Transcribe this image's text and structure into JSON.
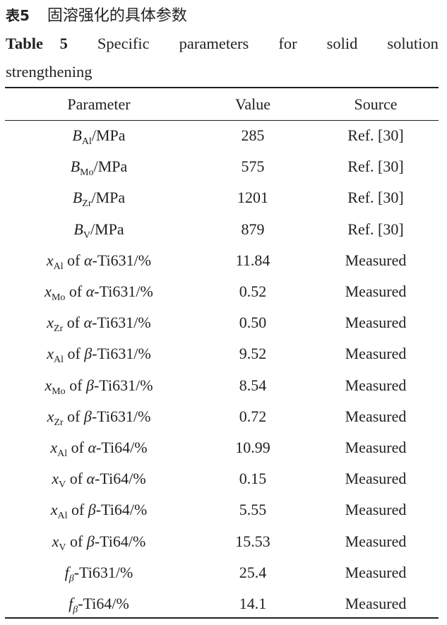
{
  "caption": {
    "cn_label": "表5",
    "cn_text": "固溶强化的具体参数",
    "en_label": "Table 5",
    "en_words": [
      "Specific",
      "parameters",
      "for",
      "solid",
      "solution"
    ],
    "en_line2": "strengthening"
  },
  "table": {
    "headers": [
      "Parameter",
      "Value",
      "Source"
    ],
    "rows": [
      {
        "sym": "B",
        "sub": "Al",
        "pre": "",
        "greek": "",
        "post": "/MPa",
        "value": "285",
        "source": "Ref. [30]"
      },
      {
        "sym": "B",
        "sub": "Mo",
        "pre": "",
        "greek": "",
        "post": "/MPa",
        "value": "575",
        "source": "Ref. [30]"
      },
      {
        "sym": "B",
        "sub": "Zr",
        "pre": "",
        "greek": "",
        "post": "/MPa",
        "value": "1201",
        "source": "Ref. [30]"
      },
      {
        "sym": "B",
        "sub": "V",
        "pre": "",
        "greek": "",
        "post": "/MPa",
        "value": "879",
        "source": "Ref. [30]"
      },
      {
        "sym": "x",
        "sub": "Al",
        "pre": " of ",
        "greek": "α",
        "post": "-Ti631/%",
        "value": "11.84",
        "source": "Measured"
      },
      {
        "sym": "x",
        "sub": "Mo",
        "pre": " of ",
        "greek": "α",
        "post": "-Ti631/%",
        "value": "0.52",
        "source": "Measured"
      },
      {
        "sym": "x",
        "sub": "Zr",
        "pre": " of ",
        "greek": "α",
        "post": "-Ti631/%",
        "value": "0.50",
        "source": "Measured"
      },
      {
        "sym": "x",
        "sub": "Al",
        "pre": " of ",
        "greek": "β",
        "post": "-Ti631/%",
        "value": "9.52",
        "source": "Measured"
      },
      {
        "sym": "x",
        "sub": "Mo",
        "pre": " of ",
        "greek": "β",
        "post": "-Ti631/%",
        "value": "8.54",
        "source": "Measured"
      },
      {
        "sym": "x",
        "sub": "Zr",
        "pre": " of ",
        "greek": "β",
        "post": "-Ti631/%",
        "value": "0.72",
        "source": "Measured"
      },
      {
        "sym": "x",
        "sub": "Al",
        "pre": " of ",
        "greek": "α",
        "post": "-Ti64/%",
        "value": "10.99",
        "source": "Measured"
      },
      {
        "sym": "x",
        "sub": "V",
        "pre": " of ",
        "greek": "α",
        "post": "-Ti64/%",
        "value": "0.15",
        "source": "Measured"
      },
      {
        "sym": "x",
        "sub": "Al",
        "pre": " of ",
        "greek": "β",
        "post": "-Ti64/%",
        "value": "5.55",
        "source": "Measured"
      },
      {
        "sym": "x",
        "sub": "V",
        "pre": " of ",
        "greek": "β",
        "post": "-Ti64/%",
        "value": "15.53",
        "source": "Measured"
      },
      {
        "sym": "f",
        "sub": "β",
        "pre": "",
        "greek": "",
        "post": "-Ti631/%",
        "value": "25.4",
        "source": "Measured"
      },
      {
        "sym": "f",
        "sub": "β",
        "pre": "",
        "greek": "",
        "post": "-Ti64/%",
        "value": "14.1",
        "source": "Measured"
      }
    ]
  }
}
